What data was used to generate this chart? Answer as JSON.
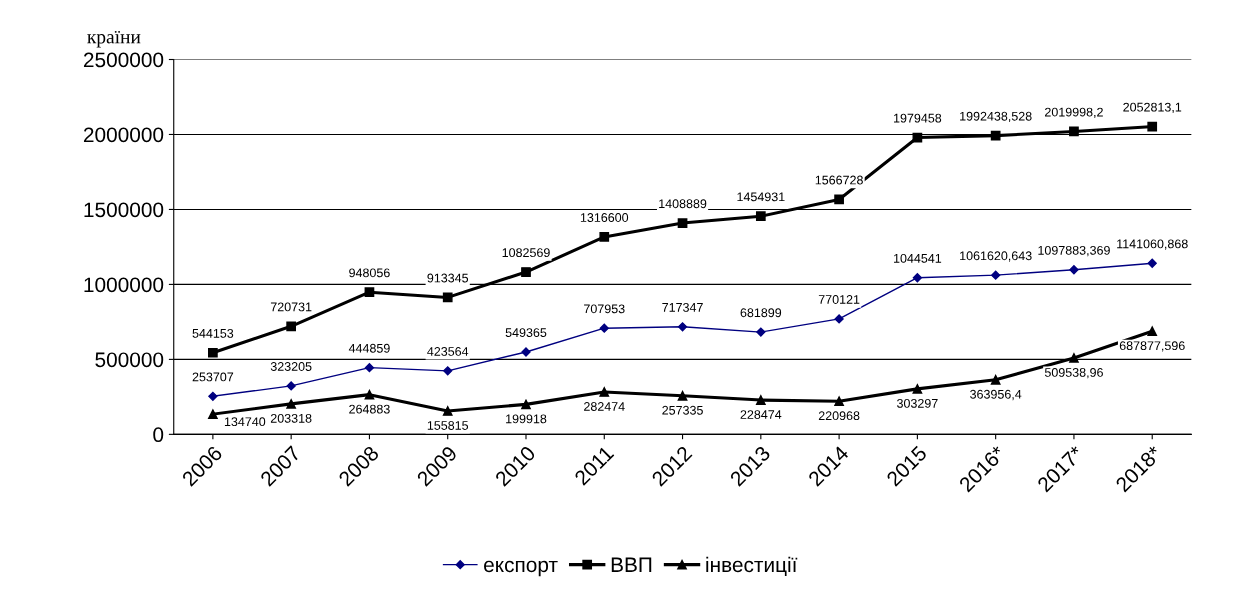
{
  "chart_data": {
    "type": "line",
    "title": "країни",
    "categories": [
      "2006",
      "2007",
      "2008",
      "2009",
      "2010",
      "2011",
      "2012",
      "2013",
      "2014",
      "2015",
      "2016*",
      "2017*",
      "2018*"
    ],
    "series": [
      {
        "name": "експорт",
        "color": "#000080",
        "marker": "diamond",
        "values": [
          253707,
          323205,
          444859,
          423564,
          549365,
          707953,
          717347,
          681899,
          770121,
          1044541,
          1061620.643,
          1097883.369,
          1141060.868
        ],
        "value_labels": [
          "253707",
          "323205",
          "444859",
          "423564",
          "549365",
          "707953",
          "717347",
          "681899",
          "770121",
          "1044541",
          "1061620,643",
          "1097883,369",
          "1141060,868"
        ]
      },
      {
        "name": "ВВП",
        "color": "#000000",
        "marker": "square",
        "values": [
          544153,
          720731,
          948056,
          913345,
          1082569,
          1316600,
          1408889,
          1454931,
          1566728,
          1979458,
          1992438.528,
          2019998.2,
          2052813.1
        ],
        "value_labels": [
          "544153",
          "720731",
          "948056",
          "913345",
          "1082569",
          "1316600",
          "1408889",
          "1454931",
          "1566728",
          "1979458",
          "1992438,528",
          "2019998,2",
          "2052813,1"
        ]
      },
      {
        "name": "інвестиції",
        "color": "#000000",
        "marker": "triangle",
        "values": [
          134740,
          203318,
          264883,
          155815,
          199918,
          282474,
          257335,
          228474,
          220968,
          303297,
          363956.4,
          509538.96,
          687877.596
        ],
        "value_labels": [
          "134740",
          "203318",
          "264883",
          "155815",
          "199918",
          "282474",
          "257335",
          "228474",
          "220968",
          "303297",
          "363956,4",
          "509538,96",
          "687877,596"
        ]
      }
    ],
    "ylim": [
      0,
      2500000
    ],
    "yticks": [
      0,
      500000,
      1000000,
      1500000,
      2000000,
      2500000
    ],
    "grid": "y",
    "legend": "bottom",
    "line_style": "solid"
  }
}
